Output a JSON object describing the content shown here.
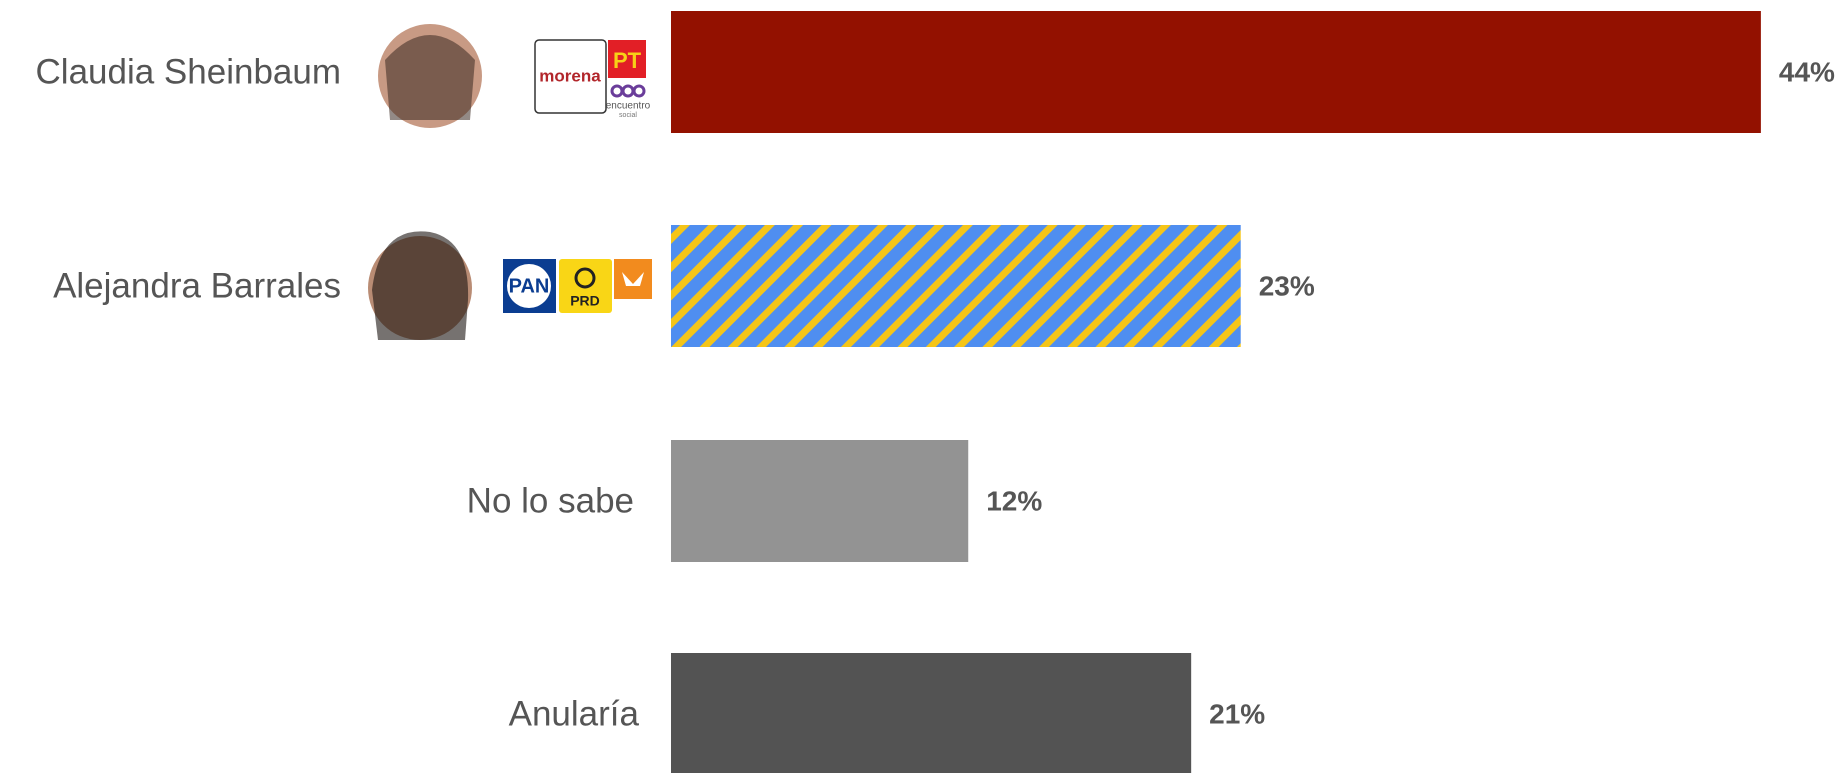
{
  "chart_data": {
    "type": "hbar",
    "categories": [
      "Claudia Sheinbaum",
      "Alejandra Barrales",
      "No lo sabe",
      "Anularía"
    ],
    "values": [
      44,
      23,
      12,
      21
    ],
    "value_labels": [
      "44%",
      "23%",
      "12%",
      "21%"
    ],
    "colors": [
      "#931100",
      "#4f8ef0",
      "#939393",
      "#535353"
    ],
    "hatch": {
      "index": 1,
      "color": "#f5c518"
    },
    "party_logos": [
      [
        "morena",
        "PT",
        "encuentro",
        "social"
      ],
      [
        "PAN",
        "PRD"
      ]
    ]
  }
}
